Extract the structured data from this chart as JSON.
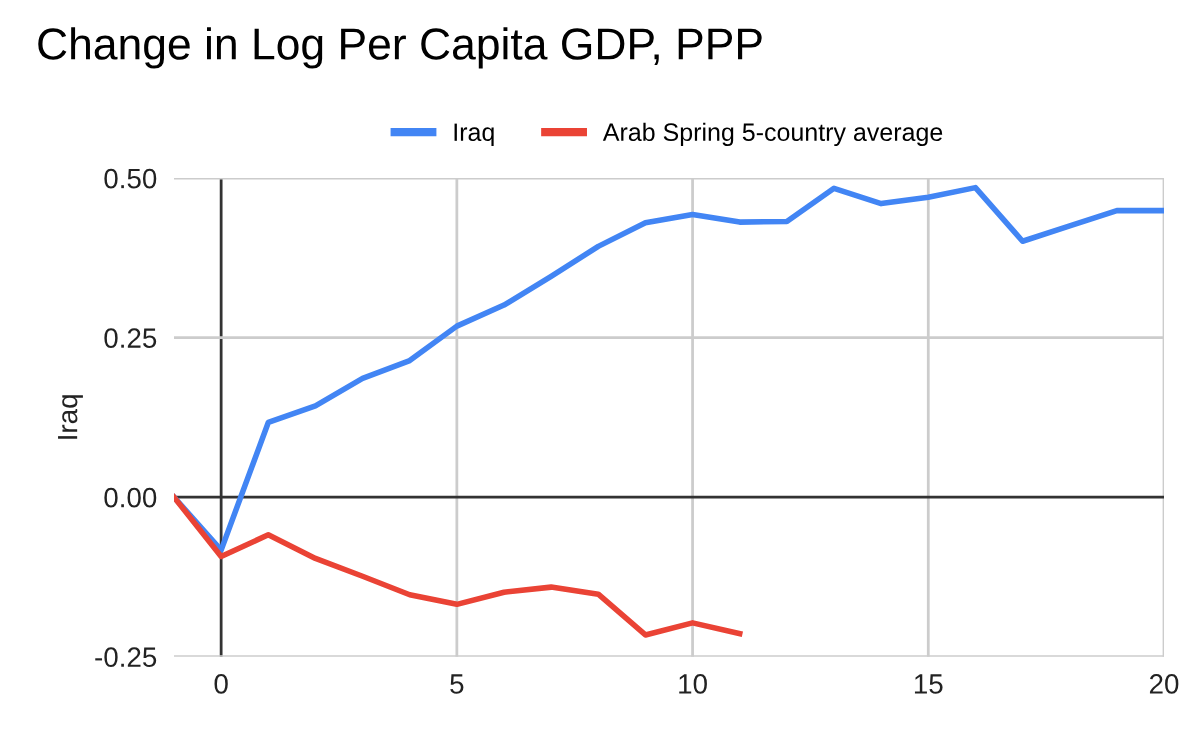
{
  "chart_data": {
    "type": "line",
    "title": "Change in Log Per Capita GDP, PPP",
    "ylabel": "Iraq",
    "xlim": [
      -1,
      20
    ],
    "xticks": [
      0,
      5,
      10,
      15,
      20
    ],
    "ylim": [
      -0.25,
      0.5
    ],
    "yticks": [
      {
        "value": -0.25,
        "label": "-0.25"
      },
      {
        "value": 0,
        "label": "0.00"
      },
      {
        "value": 0.25,
        "label": "0.25"
      },
      {
        "value": 0.5,
        "label": "0.50"
      }
    ],
    "grid": true,
    "legend": "top",
    "marker": "none",
    "line_style": "solid",
    "series": [
      {
        "name": "Iraq",
        "color": "#4285f4",
        "x": [
          -1,
          0,
          1,
          2,
          3,
          4,
          5,
          6,
          7,
          8,
          9,
          10,
          11,
          12,
          13,
          14,
          15,
          16,
          17,
          18,
          19,
          20
        ],
        "values": [
          0,
          -0.083,
          0.117,
          0.143,
          0.186,
          0.214,
          0.268,
          0.301,
          0.346,
          0.393,
          0.43,
          0.443,
          0.431,
          0.432,
          0.484,
          0.46,
          0.47,
          0.485,
          0.401,
          0.425,
          0.449,
          0.449
        ]
      },
      {
        "name": "Arab Spring 5-country average",
        "color": "#ea4335",
        "x": [
          -1,
          0,
          1,
          2,
          3,
          4,
          5,
          6,
          7,
          8,
          9,
          10,
          11
        ],
        "values": [
          0,
          -0.093,
          -0.059,
          -0.096,
          -0.124,
          -0.153,
          -0.168,
          -0.149,
          -0.141,
          -0.152,
          -0.216,
          -0.197,
          -0.214
        ]
      }
    ]
  }
}
